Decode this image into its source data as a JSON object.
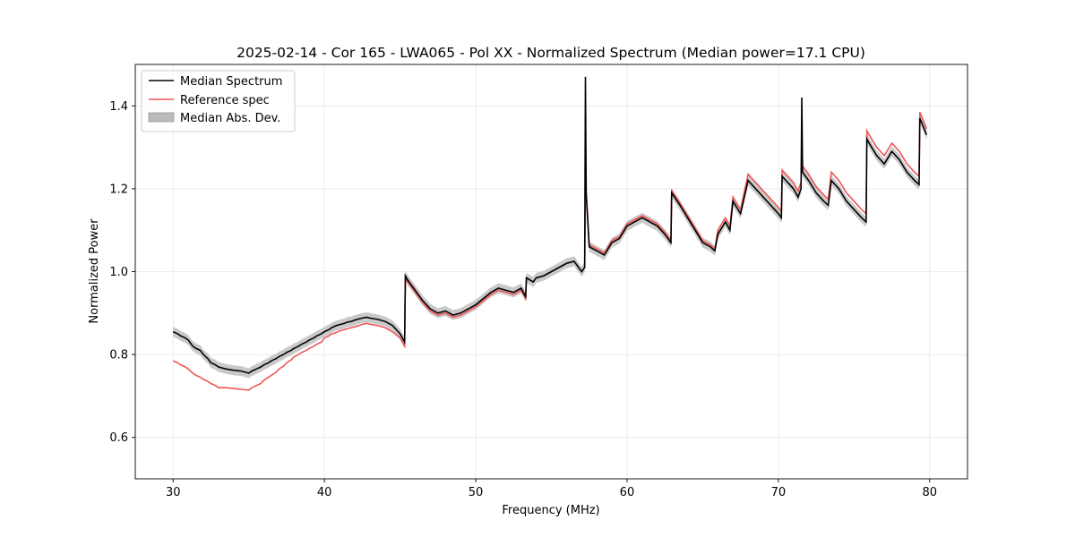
{
  "chart_data": {
    "type": "line",
    "title": "2025-02-14 - Cor 165 - LWA065 - Pol XX - Normalized Spectrum (Median power=17.1 CPU)",
    "xlabel": "Frequency (MHz)",
    "ylabel": "Normalized Power",
    "xlim": [
      27.5,
      82.5
    ],
    "ylim": [
      0.5,
      1.5
    ],
    "x_ticks": [
      30,
      40,
      50,
      60,
      70,
      80
    ],
    "y_ticks": [
      0.6,
      0.8,
      1.0,
      1.2,
      1.4
    ],
    "x_tick_labels": [
      "30",
      "40",
      "50",
      "60",
      "70",
      "80"
    ],
    "y_tick_labels": [
      "0.6",
      "0.8",
      "1.0",
      "1.2",
      "1.4"
    ],
    "grid": true,
    "legend_position": "top-left",
    "series": [
      {
        "name": "Median Spectrum",
        "color": "#000000",
        "style": "line",
        "x": [
          30.0,
          30.3,
          30.5,
          30.8,
          31.0,
          31.3,
          31.5,
          31.8,
          32.0,
          32.3,
          32.5,
          32.8,
          33.0,
          33.5,
          34.0,
          34.5,
          35.0,
          35.2,
          35.5,
          35.8,
          36.0,
          36.3,
          36.5,
          36.8,
          37.0,
          37.3,
          37.5,
          37.8,
          38.0,
          38.3,
          38.5,
          38.8,
          39.0,
          39.3,
          39.5,
          39.8,
          40.0,
          40.3,
          40.5,
          40.8,
          41.0,
          41.3,
          41.5,
          41.8,
          42.0,
          42.3,
          42.5,
          42.8,
          43.0,
          43.5,
          44.0,
          44.5,
          45.0,
          45.3,
          45.35,
          45.5,
          46.0,
          46.5,
          47.0,
          47.5,
          48.0,
          48.5,
          49.0,
          49.5,
          50.0,
          50.5,
          51.0,
          51.5,
          52.0,
          52.5,
          53.0,
          53.3,
          53.35,
          53.8,
          54.0,
          54.5,
          55.0,
          55.5,
          56.0,
          56.5,
          57.0,
          57.2,
          57.25,
          57.3,
          57.5,
          58.0,
          58.5,
          59.0,
          59.5,
          60.0,
          60.5,
          61.0,
          61.5,
          62.0,
          62.5,
          62.9,
          62.95,
          63.5,
          64.0,
          64.5,
          65.0,
          65.5,
          65.8,
          66.0,
          66.5,
          66.8,
          67.0,
          67.5,
          68.0,
          68.5,
          69.0,
          69.5,
          70.0,
          70.2,
          70.25,
          70.5,
          71.0,
          71.3,
          71.5,
          71.55,
          71.6,
          71.8,
          72.0,
          72.5,
          73.0,
          73.3,
          73.5,
          74.0,
          74.5,
          75.0,
          75.5,
          75.8,
          75.85,
          76.0,
          76.5,
          77.0,
          77.5,
          78.0,
          78.5,
          79.0,
          79.3,
          79.35,
          79.8
        ],
        "y": [
          0.855,
          0.85,
          0.845,
          0.84,
          0.835,
          0.82,
          0.815,
          0.81,
          0.8,
          0.79,
          0.78,
          0.775,
          0.77,
          0.765,
          0.762,
          0.76,
          0.755,
          0.76,
          0.765,
          0.77,
          0.775,
          0.78,
          0.785,
          0.79,
          0.795,
          0.8,
          0.805,
          0.81,
          0.815,
          0.82,
          0.825,
          0.83,
          0.835,
          0.84,
          0.845,
          0.85,
          0.855,
          0.86,
          0.865,
          0.87,
          0.872,
          0.875,
          0.878,
          0.88,
          0.883,
          0.886,
          0.888,
          0.89,
          0.888,
          0.885,
          0.88,
          0.87,
          0.85,
          0.83,
          0.99,
          0.98,
          0.955,
          0.93,
          0.91,
          0.9,
          0.905,
          0.895,
          0.9,
          0.91,
          0.92,
          0.935,
          0.95,
          0.96,
          0.955,
          0.95,
          0.96,
          0.94,
          0.985,
          0.975,
          0.985,
          0.99,
          1.0,
          1.01,
          1.02,
          1.025,
          1.0,
          1.01,
          1.47,
          1.19,
          1.06,
          1.05,
          1.04,
          1.07,
          1.08,
          1.11,
          1.12,
          1.13,
          1.12,
          1.11,
          1.09,
          1.07,
          1.19,
          1.16,
          1.13,
          1.1,
          1.07,
          1.06,
          1.05,
          1.09,
          1.12,
          1.1,
          1.17,
          1.14,
          1.22,
          1.2,
          1.18,
          1.16,
          1.14,
          1.13,
          1.23,
          1.22,
          1.2,
          1.18,
          1.2,
          1.42,
          1.24,
          1.23,
          1.22,
          1.19,
          1.17,
          1.16,
          1.22,
          1.2,
          1.17,
          1.15,
          1.13,
          1.12,
          1.32,
          1.31,
          1.28,
          1.26,
          1.29,
          1.27,
          1.24,
          1.22,
          1.21,
          1.37,
          1.33
        ],
        "mad_band": 0.012
      },
      {
        "name": "Reference spec",
        "color": "#ee5555",
        "style": "line",
        "x": [
          30.0,
          30.3,
          30.5,
          30.8,
          31.0,
          31.3,
          31.5,
          31.8,
          32.0,
          32.3,
          32.5,
          32.8,
          33.0,
          33.5,
          34.0,
          34.5,
          35.0,
          35.2,
          35.5,
          35.8,
          36.0,
          36.3,
          36.5,
          36.8,
          37.0,
          37.3,
          37.5,
          37.8,
          38.0,
          38.3,
          38.5,
          38.8,
          39.0,
          39.3,
          39.5,
          39.8,
          40.0,
          40.3,
          40.5,
          40.8,
          41.0,
          41.3,
          41.5,
          41.8,
          42.0,
          42.3,
          42.5,
          42.8,
          43.0,
          43.5,
          44.0,
          44.5,
          45.0,
          45.3,
          45.35,
          45.5,
          46.0,
          46.5,
          47.0,
          47.5,
          48.0,
          48.5,
          49.0,
          49.5,
          50.0,
          50.5,
          51.0,
          51.5,
          52.0,
          52.5,
          53.0,
          53.3,
          53.35,
          53.8,
          54.0,
          54.5,
          55.0,
          55.5,
          56.0,
          56.5,
          57.0,
          57.2,
          57.25,
          57.3,
          57.5,
          58.0,
          58.5,
          59.0,
          59.5,
          60.0,
          60.5,
          61.0,
          61.5,
          62.0,
          62.5,
          62.9,
          62.95,
          63.5,
          64.0,
          64.5,
          65.0,
          65.5,
          65.8,
          66.0,
          66.5,
          66.8,
          67.0,
          67.5,
          68.0,
          68.5,
          69.0,
          69.5,
          70.0,
          70.2,
          70.25,
          70.5,
          71.0,
          71.3,
          71.5,
          71.55,
          71.6,
          71.8,
          72.0,
          72.5,
          73.0,
          73.3,
          73.5,
          74.0,
          74.5,
          75.0,
          75.5,
          75.8,
          75.85,
          76.0,
          76.5,
          77.0,
          77.5,
          78.0,
          78.5,
          79.0,
          79.3,
          79.35,
          79.8
        ],
        "y": [
          0.785,
          0.78,
          0.775,
          0.77,
          0.765,
          0.755,
          0.75,
          0.745,
          0.74,
          0.735,
          0.73,
          0.725,
          0.72,
          0.72,
          0.718,
          0.716,
          0.714,
          0.72,
          0.725,
          0.73,
          0.738,
          0.745,
          0.75,
          0.757,
          0.765,
          0.772,
          0.78,
          0.787,
          0.795,
          0.8,
          0.805,
          0.81,
          0.815,
          0.82,
          0.825,
          0.83,
          0.84,
          0.845,
          0.85,
          0.853,
          0.857,
          0.86,
          0.862,
          0.865,
          0.867,
          0.87,
          0.873,
          0.875,
          0.873,
          0.87,
          0.865,
          0.855,
          0.84,
          0.82,
          0.985,
          0.975,
          0.95,
          0.925,
          0.905,
          0.895,
          0.9,
          0.89,
          0.895,
          0.905,
          0.915,
          0.93,
          0.945,
          0.955,
          0.95,
          0.945,
          0.955,
          0.935,
          0.985,
          0.975,
          0.985,
          0.99,
          1.0,
          1.01,
          1.02,
          1.025,
          1.0,
          1.01,
          1.19,
          1.19,
          1.065,
          1.055,
          1.045,
          1.075,
          1.085,
          1.115,
          1.125,
          1.135,
          1.125,
          1.115,
          1.095,
          1.075,
          1.195,
          1.165,
          1.135,
          1.105,
          1.075,
          1.065,
          1.055,
          1.1,
          1.13,
          1.11,
          1.18,
          1.15,
          1.235,
          1.215,
          1.195,
          1.175,
          1.155,
          1.145,
          1.245,
          1.235,
          1.215,
          1.195,
          1.215,
          1.3,
          1.255,
          1.245,
          1.235,
          1.205,
          1.185,
          1.175,
          1.24,
          1.22,
          1.19,
          1.17,
          1.15,
          1.14,
          1.34,
          1.33,
          1.3,
          1.28,
          1.31,
          1.29,
          1.26,
          1.24,
          1.23,
          1.385,
          1.345
        ]
      },
      {
        "name": "Median Abs. Dev.",
        "color": "#bbbbbb",
        "style": "band"
      }
    ]
  }
}
